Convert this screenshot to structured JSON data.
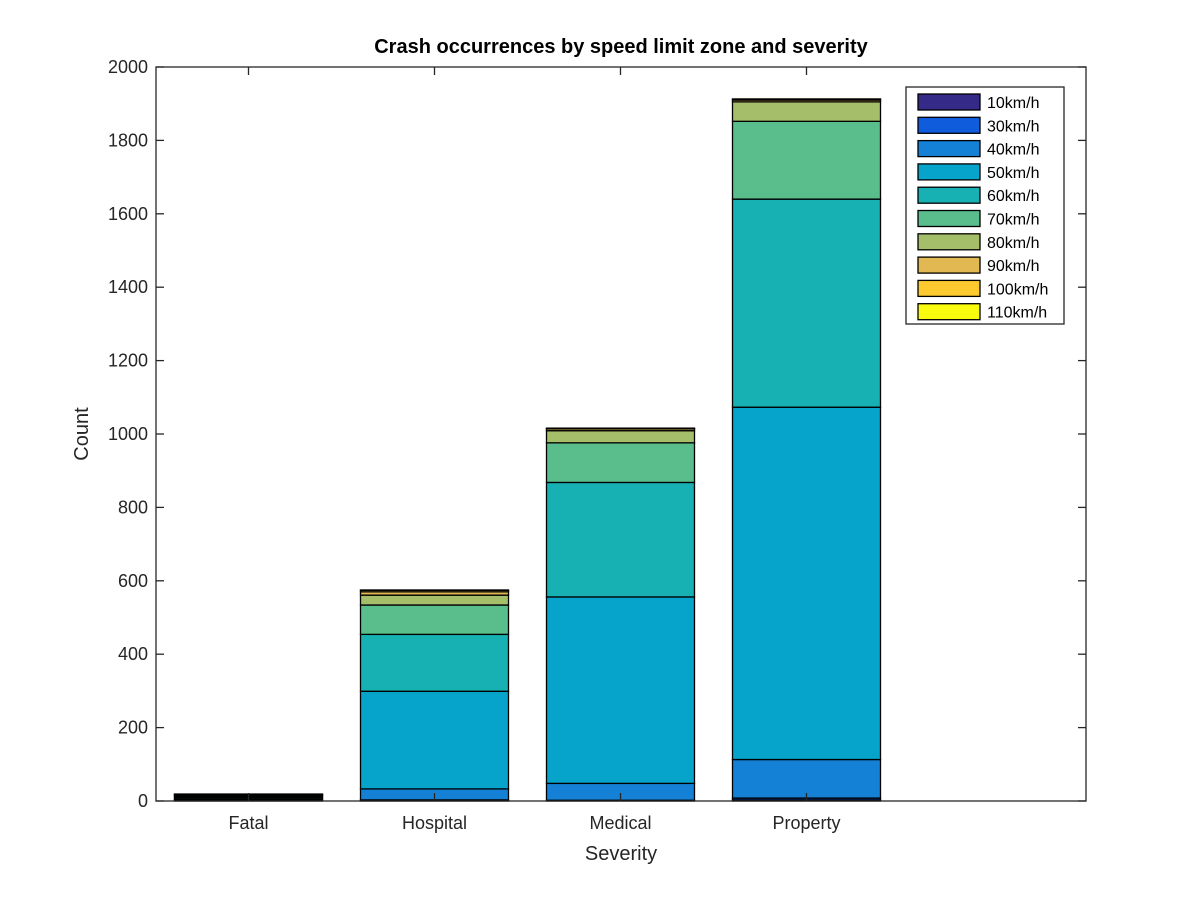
{
  "chart_data": {
    "type": "bar",
    "stacked": true,
    "title": "Crash occurrences by speed limit zone and severity",
    "xlabel": "Severity",
    "ylabel": "Count",
    "ylim": [
      0,
      2000
    ],
    "yticks": [
      0,
      200,
      400,
      600,
      800,
      1000,
      1200,
      1400,
      1600,
      1800,
      2000
    ],
    "categories": [
      "Fatal",
      "Hospital",
      "Medical",
      "Property"
    ],
    "legend_position": "top-right",
    "grid": false,
    "series": [
      {
        "name": "10km/h",
        "color": "#352A87",
        "values": [
          0,
          1,
          0,
          3
        ]
      },
      {
        "name": "30km/h",
        "color": "#0F5CDD",
        "values": [
          0,
          2,
          2,
          5
        ]
      },
      {
        "name": "40km/h",
        "color": "#1481D6",
        "values": [
          2,
          30,
          46,
          105
        ]
      },
      {
        "name": "50km/h",
        "color": "#06A4CA",
        "values": [
          3,
          266,
          508,
          960
        ]
      },
      {
        "name": "60km/h",
        "color": "#17B1B4",
        "values": [
          4,
          155,
          312,
          567
        ]
      },
      {
        "name": "70km/h",
        "color": "#59BD8C",
        "values": [
          3,
          80,
          108,
          212
        ]
      },
      {
        "name": "80km/h",
        "color": "#A5BE6A",
        "values": [
          3,
          27,
          33,
          53
        ]
      },
      {
        "name": "90km/h",
        "color": "#E1B852",
        "values": [
          2,
          9,
          5,
          5
        ]
      },
      {
        "name": "100km/h",
        "color": "#FCCA2E",
        "values": [
          1,
          4,
          1,
          2
        ]
      },
      {
        "name": "110km/h",
        "color": "#F9FB0E",
        "values": [
          1,
          1,
          1,
          1
        ]
      }
    ]
  }
}
